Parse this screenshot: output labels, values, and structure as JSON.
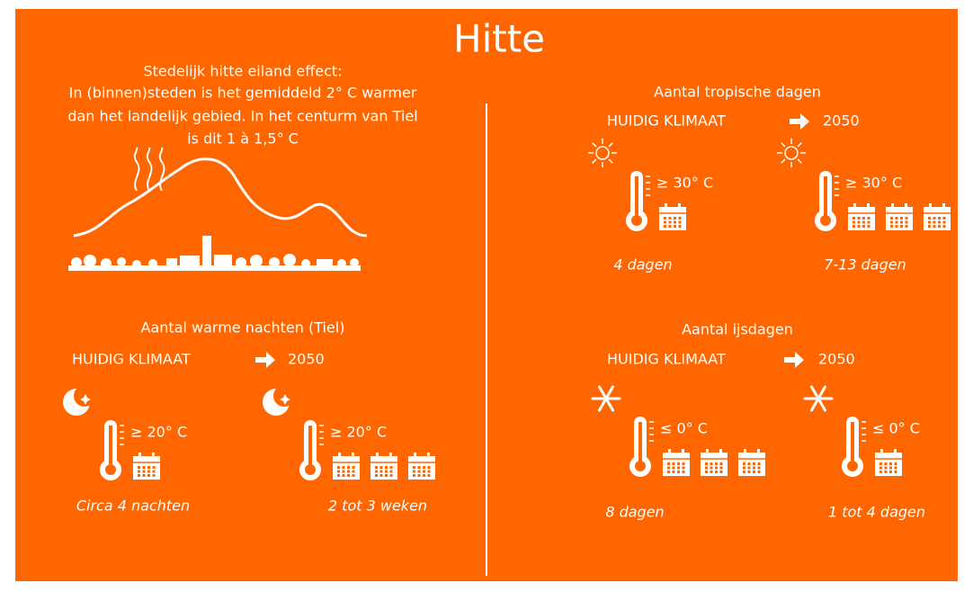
{
  "title": "Hitte",
  "heat_island": {
    "lines": [
      "Stedelijk hitte eiland effect:",
      "In (binnen)steden is het gemiddeld 2° C warmer",
      "dan het landelijk gebied. In het centurm van Tiel",
      "is dit 1 à 1,5° C"
    ]
  },
  "sections": [
    {
      "heading": "Aantal warme nachten (Tiel)",
      "current_label": "HUIDIG KLIMAAT",
      "future_label": "2050",
      "groups": [
        {
          "threshold": "≥ 20° C",
          "caption": "Circa 4 nachten"
        },
        {
          "threshold": "≥ 20° C",
          "caption": "2 tot 3 weken"
        }
      ]
    },
    {
      "heading": "Aantal tropische dagen",
      "current_label": "HUIDIG KLIMAAT",
      "future_label": "2050",
      "groups": [
        {
          "threshold": "≥ 30° C",
          "caption": "4 dagen"
        },
        {
          "threshold": "≥ 30° C",
          "caption": "7-13 dagen"
        }
      ]
    },
    {
      "heading": "Aantal ijsdagen",
      "current_label": "HUIDIG KLIMAAT",
      "future_label": "2050",
      "groups": [
        {
          "threshold": "≤ 0° C",
          "caption": "8 dagen"
        },
        {
          "threshold": "≤ 0° C",
          "caption": "1 tot 4 dagen"
        }
      ]
    }
  ]
}
